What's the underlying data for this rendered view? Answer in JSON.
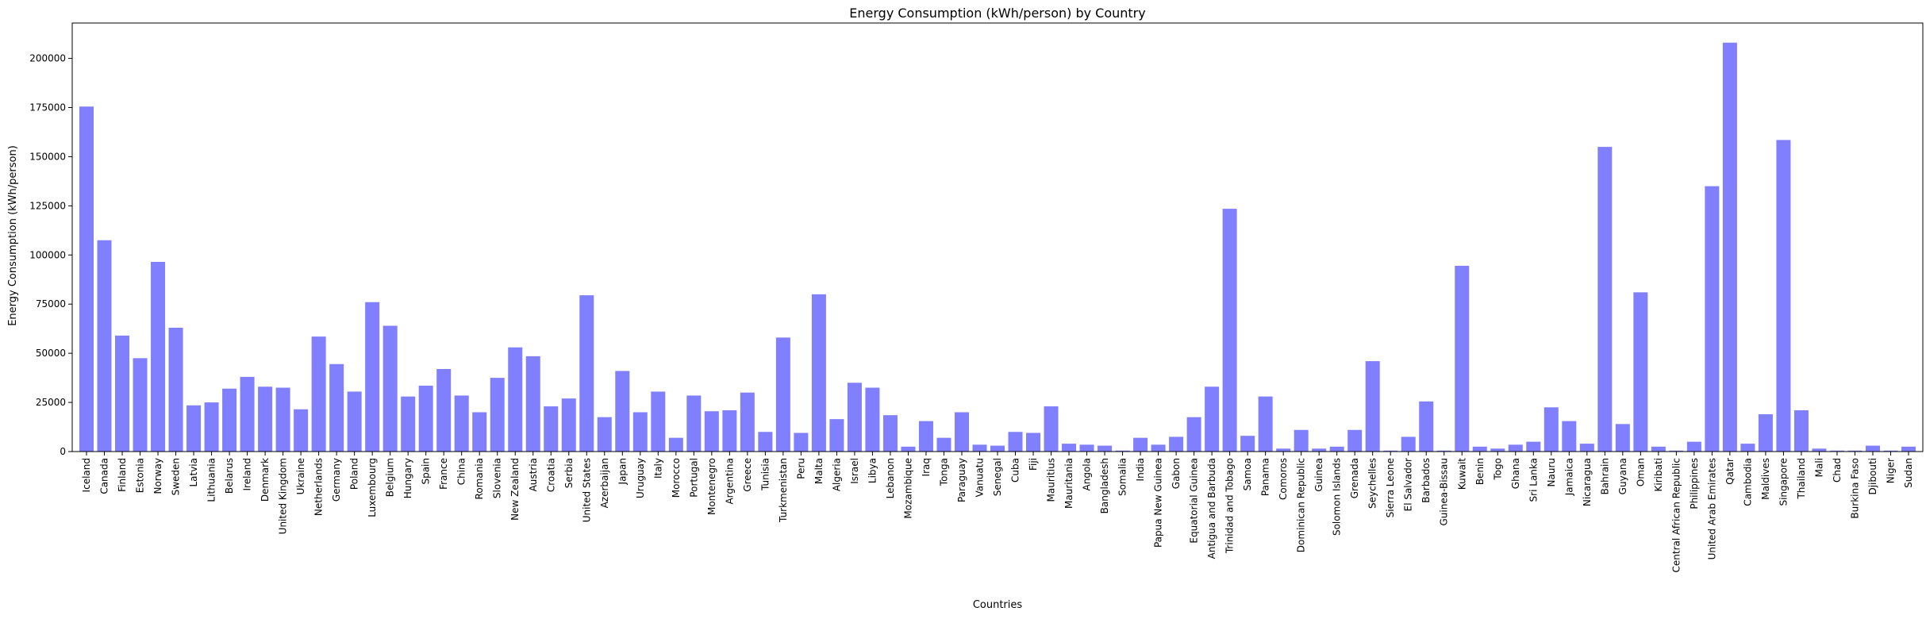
{
  "chart_data": {
    "type": "bar",
    "title": "Energy Consumption (kWh/person) by Country",
    "xlabel": "Countries",
    "ylabel": "Energy Consumption (kWh/person)",
    "ylim": [
      0,
      218000
    ],
    "yticks": [
      0,
      25000,
      50000,
      75000,
      100000,
      125000,
      150000,
      175000,
      200000
    ],
    "ytick_labels": [
      "0",
      "25000",
      "50000",
      "75000",
      "100000",
      "125000",
      "150000",
      "175000",
      "200000"
    ],
    "grid": false,
    "bar_color": "#8080ff",
    "categories": [
      "Iceland",
      "Canada",
      "Finland",
      "Estonia",
      "Norway",
      "Sweden",
      "Latvia",
      "Lithuania",
      "Belarus",
      "Ireland",
      "Denmark",
      "United Kingdom",
      "Ukraine",
      "Netherlands",
      "Germany",
      "Poland",
      "Luxembourg",
      "Belgium",
      "Hungary",
      "Spain",
      "France",
      "China",
      "Romania",
      "Slovenia",
      "New Zealand",
      "Austria",
      "Croatia",
      "Serbia",
      "United States",
      "Azerbaijan",
      "Japan",
      "Uruguay",
      "Italy",
      "Morocco",
      "Portugal",
      "Montenegro",
      "Argentina",
      "Greece",
      "Tunisia",
      "Turkmenistan",
      "Peru",
      "Malta",
      "Algeria",
      "Israel",
      "Libya",
      "Lebanon",
      "Mozambique",
      "Iraq",
      "Tonga",
      "Paraguay",
      "Vanuatu",
      "Senegal",
      "Cuba",
      "Fiji",
      "Mauritius",
      "Mauritania",
      "Angola",
      "Bangladesh",
      "Somalia",
      "India",
      "Papua New Guinea",
      "Gabon",
      "Equatorial Guinea",
      "Antigua and Barbuda",
      "Trinidad and Tobago",
      "Samoa",
      "Panama",
      "Comoros",
      "Dominican Republic",
      "Guinea",
      "Solomon Islands",
      "Grenada",
      "Seychelles",
      "Sierra Leone",
      "El Salvador",
      "Barbados",
      "Guinea-Bissau",
      "Kuwait",
      "Benin",
      "Togo",
      "Ghana",
      "Sri Lanka",
      "Nauru",
      "Jamaica",
      "Nicaragua",
      "Bahrain",
      "Guyana",
      "Oman",
      "Kiribati",
      "Central African Republic",
      "Philippines",
      "United Arab Emirates",
      "Qatar",
      "Cambodia",
      "Maldives",
      "Singapore",
      "Thailand",
      "Mali",
      "Chad",
      "Burkina Faso",
      "Djibouti",
      "Niger",
      "Sudan"
    ],
    "values": [
      175500,
      107500,
      59000,
      47500,
      96500,
      63000,
      23500,
      25000,
      32000,
      38000,
      33000,
      32500,
      21500,
      58500,
      44500,
      30500,
      76000,
      64000,
      28000,
      33500,
      42000,
      28500,
      20000,
      37500,
      53000,
      48500,
      23000,
      27000,
      79500,
      17500,
      41000,
      20000,
      30500,
      7000,
      28500,
      20500,
      21000,
      30000,
      10000,
      58000,
      9500,
      80000,
      16500,
      35000,
      32500,
      18500,
      2500,
      15500,
      7000,
      20000,
      3500,
      3000,
      10000,
      9500,
      23000,
      4000,
      3500,
      3000,
      500,
      7000,
      3500,
      7500,
      17500,
      33000,
      123500,
      8000,
      28000,
      1500,
      11000,
      1500,
      2500,
      11000,
      46000,
      500,
      7500,
      25500,
      500,
      94500,
      2500,
      1500,
      3500,
      5000,
      22500,
      15500,
      4000,
      155000,
      14000,
      81000,
      2500,
      500,
      5000,
      135000,
      208000,
      4000,
      19000,
      158500,
      21000,
      1500,
      500,
      500,
      3000,
      500,
      2500
    ]
  }
}
